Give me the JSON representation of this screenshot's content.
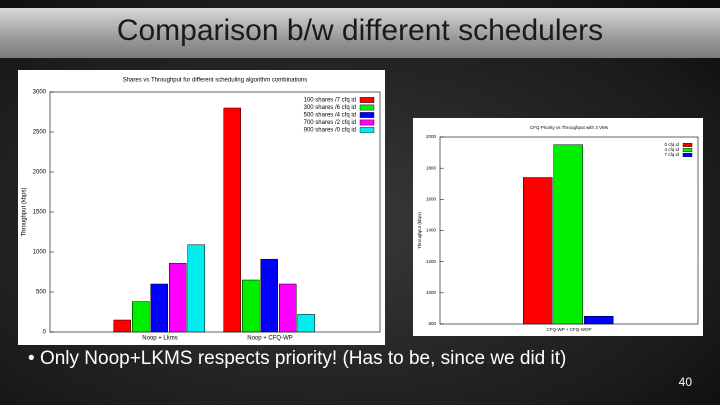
{
  "slide": {
    "title": "Comparison b/w different schedulers",
    "bullet": "Only Noop+LKMS respects priority! (Has to be, since we did it)",
    "page_number": "40"
  },
  "chart_data": [
    {
      "type": "bar",
      "title": "Shares vs Throughput for different scheduling algorithm combinations",
      "y_label": "Throughput (kbps)",
      "categories": [
        "Noop + Lkms",
        "Noop + CFQ-WP"
      ],
      "series": [
        {
          "name": "100 shares /7 cfq id",
          "color": "#ff0000",
          "values": [
            150,
            2800
          ]
        },
        {
          "name": "300 shares /6 cfq id",
          "color": "#00ee00",
          "values": [
            380,
            650
          ]
        },
        {
          "name": "500 shares /4 cfq id",
          "color": "#0000ff",
          "values": [
            600,
            910
          ]
        },
        {
          "name": "700 shares /2 cfq id",
          "color": "#ff00ff",
          "values": [
            860,
            600
          ]
        },
        {
          "name": "900 shares /0 cfq id",
          "color": "#00eeee",
          "values": [
            1090,
            220
          ]
        }
      ],
      "ylim": [
        0,
        3000
      ],
      "yticks": [
        0,
        500,
        1000,
        1500,
        2000,
        2500,
        3000
      ],
      "legend": "top-right"
    },
    {
      "type": "bar",
      "title": "CFQ Priority vs Throughput with 3 VMs",
      "y_label": "Throughput (kbps)",
      "categories": [
        "CFQ-WP + CFQ-WOP"
      ],
      "series": [
        {
          "name": "0 cfq id",
          "color": "#ff0000",
          "values": [
            1740
          ]
        },
        {
          "name": "4 cfq id",
          "color": "#00ee00",
          "values": [
            1950
          ]
        },
        {
          "name": "7 cfq id",
          "color": "#0000ff",
          "values": [
            850
          ]
        }
      ],
      "ylim": [
        800,
        2000
      ],
      "yticks": [
        800,
        1000,
        1200,
        1400,
        1600,
        1800,
        2000
      ],
      "legend": "top-right"
    }
  ]
}
